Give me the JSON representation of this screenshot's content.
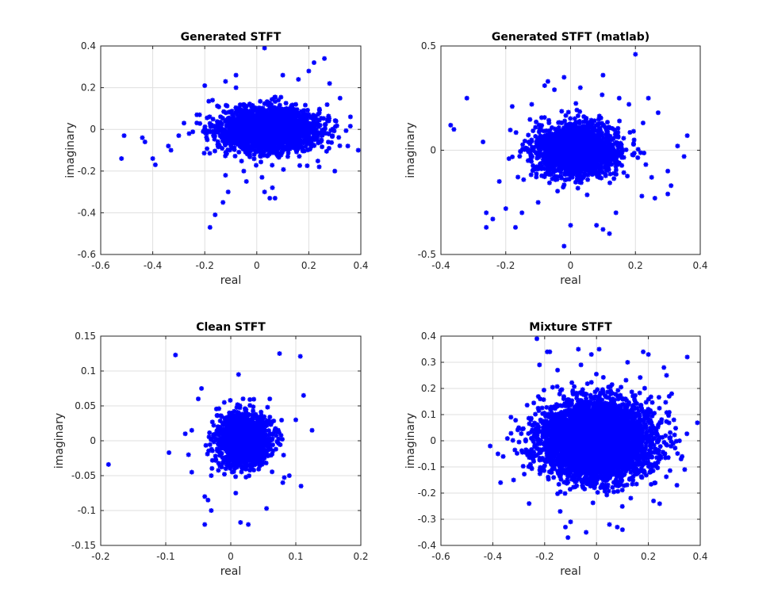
{
  "colors": {
    "marker": "#0000ff",
    "axis": "#262626",
    "grid": "#dfdfdf",
    "background": "#ffffff"
  },
  "chart_data": [
    {
      "type": "scatter",
      "title": "Generated STFT",
      "xlabel": "real",
      "ylabel": "imaginary",
      "xlim": [
        -0.6,
        0.4
      ],
      "ylim": [
        -0.6,
        0.4
      ],
      "xticks": [
        -0.6,
        -0.4,
        -0.2,
        0,
        0.2,
        0.4
      ],
      "yticks": [
        -0.6,
        -0.4,
        -0.2,
        0,
        0.2,
        0.4
      ],
      "xtick_labels": [
        "-0.6",
        "-0.4",
        "-0.2",
        "0",
        "0.2",
        "0.4"
      ],
      "ytick_labels": [
        "-0.6",
        "-0.4",
        "-0.2",
        "0",
        "0.2",
        "0.4"
      ],
      "grid": true,
      "marker": "*",
      "cluster": {
        "center": [
          0.05,
          0.0
        ],
        "spread": [
          0.09,
          0.05
        ],
        "count": 2600
      },
      "points": [
        [
          -0.52,
          -0.14
        ],
        [
          -0.51,
          -0.03
        ],
        [
          -0.44,
          -0.04
        ],
        [
          -0.43,
          -0.06
        ],
        [
          -0.4,
          -0.14
        ],
        [
          -0.39,
          -0.17
        ],
        [
          -0.34,
          -0.08
        ],
        [
          -0.33,
          -0.1
        ],
        [
          -0.3,
          -0.03
        ],
        [
          -0.28,
          0.03
        ],
        [
          -0.22,
          0.07
        ],
        [
          -0.17,
          0.14
        ],
        [
          -0.16,
          -0.41
        ],
        [
          -0.18,
          -0.47
        ],
        [
          -0.13,
          -0.35
        ],
        [
          -0.11,
          -0.3
        ],
        [
          -0.12,
          -0.22
        ],
        [
          -0.05,
          -0.2
        ],
        [
          -0.04,
          -0.25
        ],
        [
          0.03,
          -0.3
        ],
        [
          0.06,
          -0.28
        ],
        [
          0.05,
          -0.33
        ],
        [
          0.07,
          -0.33
        ],
        [
          0.02,
          -0.23
        ],
        [
          0.03,
          0.39
        ],
        [
          0.1,
          0.26
        ],
        [
          0.16,
          0.24
        ],
        [
          0.22,
          0.32
        ],
        [
          0.26,
          0.34
        ],
        [
          0.24,
          -0.18
        ],
        [
          0.3,
          -0.2
        ],
        [
          0.35,
          -0.08
        ],
        [
          0.39,
          -0.1
        ],
        [
          -0.12,
          0.23
        ],
        [
          -0.08,
          0.26
        ],
        [
          -0.2,
          0.21
        ],
        [
          0.32,
          0.15
        ],
        [
          0.36,
          0.06
        ],
        [
          -0.26,
          -0.02
        ],
        [
          -0.08,
          0.2
        ],
        [
          0.2,
          0.28
        ],
        [
          0.28,
          0.22
        ]
      ]
    },
    {
      "type": "scatter",
      "title": "Generated STFT (matlab)",
      "xlabel": "real",
      "ylabel": "imaginary",
      "xlim": [
        -0.4,
        0.4
      ],
      "ylim": [
        -0.5,
        0.5
      ],
      "xticks": [
        -0.4,
        -0.2,
        0,
        0.2,
        0.4
      ],
      "yticks": [
        -0.5,
        0,
        0.5
      ],
      "xtick_labels": [
        "-0.4",
        "-0.2",
        "0",
        "0.2",
        "0.4"
      ],
      "ytick_labels": [
        "-0.5",
        "0",
        "0.5"
      ],
      "grid": true,
      "marker": "*",
      "cluster": {
        "center": [
          0.02,
          0.0
        ],
        "spread": [
          0.06,
          0.06
        ],
        "count": 2200
      },
      "points": [
        [
          -0.37,
          0.12
        ],
        [
          -0.36,
          0.1
        ],
        [
          -0.32,
          0.25
        ],
        [
          -0.27,
          0.04
        ],
        [
          -0.26,
          -0.3
        ],
        [
          -0.26,
          -0.37
        ],
        [
          -0.24,
          -0.33
        ],
        [
          -0.22,
          -0.15
        ],
        [
          -0.2,
          -0.28
        ],
        [
          -0.18,
          0.21
        ],
        [
          -0.17,
          -0.37
        ],
        [
          -0.15,
          -0.3
        ],
        [
          -0.12,
          0.22
        ],
        [
          -0.08,
          0.31
        ],
        [
          -0.07,
          0.33
        ],
        [
          -0.05,
          0.29
        ],
        [
          -0.02,
          0.35
        ],
        [
          -0.02,
          -0.46
        ],
        [
          0.0,
          -0.36
        ],
        [
          0.03,
          0.3
        ],
        [
          0.08,
          -0.36
        ],
        [
          0.1,
          -0.38
        ],
        [
          0.1,
          0.36
        ],
        [
          0.12,
          -0.4
        ],
        [
          0.18,
          0.22
        ],
        [
          0.2,
          0.46
        ],
        [
          0.24,
          0.25
        ],
        [
          0.22,
          -0.22
        ],
        [
          0.26,
          -0.23
        ],
        [
          0.3,
          -0.21
        ],
        [
          0.31,
          -0.17
        ],
        [
          0.33,
          0.02
        ],
        [
          0.35,
          -0.03
        ],
        [
          0.36,
          0.07
        ],
        [
          0.27,
          0.18
        ],
        [
          0.3,
          -0.1
        ],
        [
          0.25,
          -0.13
        ],
        [
          0.14,
          -0.3
        ],
        [
          -0.1,
          -0.25
        ],
        [
          0.15,
          0.25
        ]
      ]
    },
    {
      "type": "scatter",
      "title": "Clean STFT",
      "xlabel": "real",
      "ylabel": "imaginary",
      "xlim": [
        -0.2,
        0.2
      ],
      "ylim": [
        -0.15,
        0.15
      ],
      "xticks": [
        -0.2,
        -0.1,
        0,
        0.1,
        0.2
      ],
      "yticks": [
        -0.15,
        -0.1,
        -0.05,
        0,
        0.05,
        0.1,
        0.15
      ],
      "xtick_labels": [
        "-0.2",
        "-0.1",
        "0",
        "0.1",
        "0.2"
      ],
      "ytick_labels": [
        "-0.15",
        "-0.1",
        "-0.05",
        "0",
        "0.05",
        "0.1",
        "0.15"
      ],
      "grid": true,
      "marker": "*",
      "cluster": {
        "center": [
          0.02,
          0.0
        ],
        "spread": [
          0.02,
          0.018
        ],
        "count": 1500
      },
      "points": [
        [
          -0.188,
          -0.034
        ],
        [
          -0.095,
          -0.017
        ],
        [
          -0.085,
          0.123
        ],
        [
          -0.04,
          -0.12
        ],
        [
          -0.03,
          -0.1
        ],
        [
          -0.04,
          -0.08
        ],
        [
          -0.035,
          -0.085
        ],
        [
          -0.06,
          -0.045
        ],
        [
          -0.065,
          -0.02
        ],
        [
          -0.07,
          0.01
        ],
        [
          -0.05,
          0.06
        ],
        [
          -0.06,
          0.015
        ],
        [
          0.015,
          -0.117
        ],
        [
          0.027,
          -0.12
        ],
        [
          0.055,
          -0.097
        ],
        [
          0.075,
          0.125
        ],
        [
          0.107,
          0.121
        ],
        [
          0.112,
          0.065
        ],
        [
          0.125,
          0.015
        ],
        [
          0.108,
          -0.065
        ],
        [
          0.09,
          -0.05
        ],
        [
          0.012,
          0.095
        ],
        [
          -0.01,
          0.055
        ],
        [
          0.06,
          0.06
        ],
        [
          0.1,
          0.03
        ],
        [
          -0.045,
          0.075
        ],
        [
          0.08,
          -0.06
        ],
        [
          -0.03,
          -0.05
        ]
      ]
    },
    {
      "type": "scatter",
      "title": "Mixture STFT",
      "xlabel": "real",
      "ylabel": "imaginary",
      "xlim": [
        -0.6,
        0.4
      ],
      "ylim": [
        -0.4,
        0.4
      ],
      "xticks": [
        -0.6,
        -0.4,
        -0.2,
        0,
        0.2,
        0.4
      ],
      "yticks": [
        -0.4,
        -0.3,
        -0.2,
        -0.1,
        0,
        0.1,
        0.2,
        0.3,
        0.4
      ],
      "xtick_labels": [
        "-0.6",
        "-0.4",
        "-0.2",
        "0",
        "0.2",
        "0.4"
      ],
      "ytick_labels": [
        "-0.4",
        "-0.3",
        "-0.2",
        "-0.1",
        "0",
        "0.1",
        "0.2",
        "0.3",
        "0.4"
      ],
      "grid": true,
      "marker": "*",
      "cluster": {
        "center": [
          0.0,
          0.0
        ],
        "spread": [
          0.1,
          0.07
        ],
        "count": 5500
      },
      "points": [
        [
          -0.41,
          -0.02
        ],
        [
          -0.38,
          -0.05
        ],
        [
          -0.36,
          -0.06
        ],
        [
          -0.37,
          -0.16
        ],
        [
          -0.33,
          0.09
        ],
        [
          -0.32,
          -0.15
        ],
        [
          -0.23,
          0.39
        ],
        [
          -0.22,
          0.29
        ],
        [
          -0.19,
          0.34
        ],
        [
          -0.18,
          0.34
        ],
        [
          -0.15,
          0.27
        ],
        [
          -0.14,
          -0.27
        ],
        [
          -0.12,
          -0.33
        ],
        [
          -0.11,
          -0.37
        ],
        [
          -0.1,
          -0.31
        ],
        [
          -0.07,
          0.35
        ],
        [
          -0.04,
          -0.35
        ],
        [
          -0.02,
          0.33
        ],
        [
          0.01,
          0.35
        ],
        [
          0.05,
          -0.32
        ],
        [
          0.08,
          -0.33
        ],
        [
          0.1,
          -0.34
        ],
        [
          0.18,
          0.34
        ],
        [
          0.2,
          0.33
        ],
        [
          0.26,
          0.28
        ],
        [
          0.27,
          0.25
        ],
        [
          0.29,
          0.18
        ],
        [
          0.33,
          -0.06
        ],
        [
          0.35,
          0.32
        ],
        [
          0.34,
          -0.11
        ],
        [
          0.31,
          -0.17
        ],
        [
          0.28,
          0.17
        ],
        [
          -0.26,
          -0.24
        ],
        [
          0.22,
          -0.23
        ],
        [
          -0.3,
          0.05
        ],
        [
          0.32,
          0.0
        ],
        [
          -0.06,
          0.29
        ],
        [
          0.12,
          0.3
        ]
      ]
    }
  ]
}
